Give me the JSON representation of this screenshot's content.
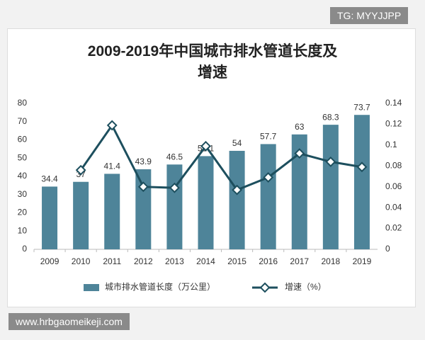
{
  "chart_data": {
    "type": "bar-line",
    "title": "2009-2019年中国城市排水管道长度及增速",
    "categories": [
      "2009",
      "2010",
      "2011",
      "2012",
      "2013",
      "2014",
      "2015",
      "2016",
      "2017",
      "2018",
      "2019"
    ],
    "series": [
      {
        "name": "城市排水管道长度（万公里）",
        "type": "bar",
        "color": "#4e8499",
        "values": [
          34.4,
          37,
          41.4,
          43.9,
          46.5,
          51.1,
          54,
          57.7,
          63,
          68.3,
          73.7
        ]
      },
      {
        "name": "增速（%）",
        "type": "line",
        "axis": "y2",
        "color": "#1d4f5e",
        "values": [
          null,
          0.076,
          0.119,
          0.06,
          0.059,
          0.099,
          0.057,
          0.069,
          0.092,
          0.084,
          0.079
        ]
      }
    ],
    "ylim": [
      0,
      80
    ],
    "yticks": [
      0,
      10,
      20,
      30,
      40,
      50,
      60,
      70,
      80
    ],
    "y2lim": [
      0,
      0.14
    ],
    "y2ticks": [
      0,
      0.02,
      0.04,
      0.06,
      0.08,
      0.1,
      0.12,
      0.14
    ],
    "grid": false,
    "legend": "bottom"
  },
  "watermarks": {
    "top": "TG: MYYJJPP",
    "bottom": "www.hrbgaomeikeji.com"
  }
}
